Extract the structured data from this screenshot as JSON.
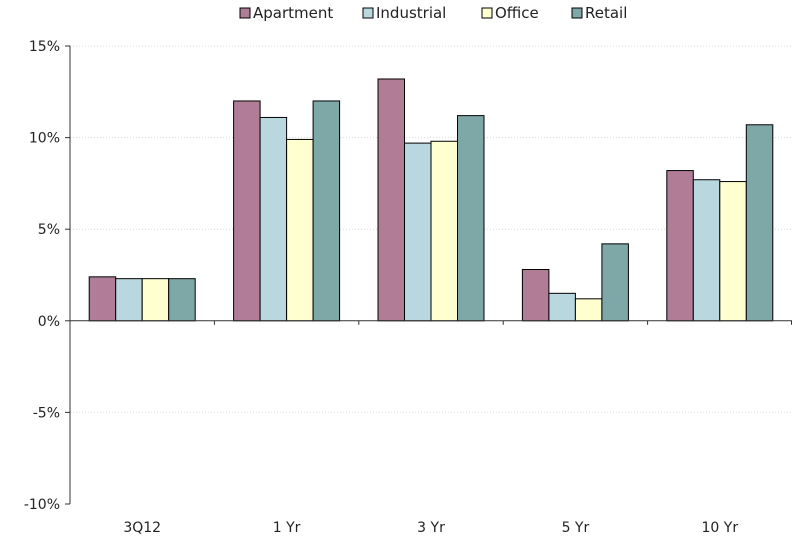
{
  "chart_data": {
    "type": "bar",
    "title": "",
    "xlabel": "",
    "ylabel": "",
    "categories": [
      "3Q12",
      "1 Yr",
      "3 Yr",
      "5 Yr",
      "10 Yr"
    ],
    "series": [
      {
        "name": "Apartment",
        "color": "#b07c96",
        "values": [
          2.4,
          12.0,
          13.2,
          2.8,
          8.2
        ]
      },
      {
        "name": "Industrial",
        "color": "#b8d7de",
        "values": [
          2.3,
          11.1,
          9.7,
          1.5,
          7.7
        ]
      },
      {
        "name": "Office",
        "color": "#ffffd0",
        "values": [
          2.3,
          9.9,
          9.8,
          1.2,
          7.6
        ]
      },
      {
        "name": "Retail",
        "color": "#7ea8a8",
        "values": [
          2.3,
          12.0,
          11.2,
          4.2,
          10.7
        ]
      }
    ],
    "ylim": [
      -10,
      15
    ],
    "yticks": [
      -10,
      -5,
      0,
      5,
      10,
      15
    ],
    "ytick_labels": [
      "-10%",
      "-5%",
      "0%",
      "5%",
      "10%",
      "15%"
    ],
    "grid": true,
    "legend_position": "top-center"
  }
}
